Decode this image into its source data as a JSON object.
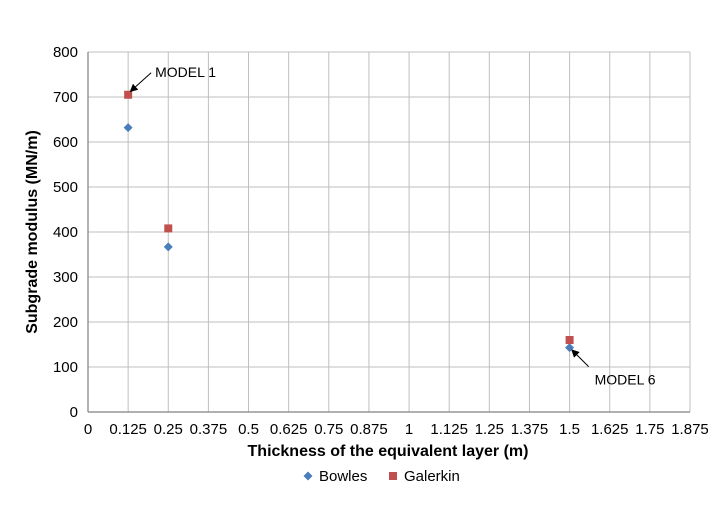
{
  "chart_data": {
    "type": "scatter",
    "title": "",
    "xlabel": "Thickness of the equivalent layer  (m)",
    "ylabel": "Subgrade modulus  (MN/m)",
    "xlim": [
      0,
      1.875
    ],
    "ylim": [
      0,
      800
    ],
    "x_ticks": [
      "0",
      "0.125",
      "0.25",
      "0.375",
      "0.5",
      "0.625",
      "0.75",
      "0.875",
      "1",
      "1.125",
      "1.25",
      "1.375",
      "1.5",
      "1.625",
      "1.75",
      "1.875"
    ],
    "y_ticks": [
      "0",
      "100",
      "200",
      "300",
      "400",
      "500",
      "600",
      "700",
      "800"
    ],
    "grid": true,
    "legend_position": "bottom",
    "series": [
      {
        "name": "Bowles",
        "marker": "diamond",
        "color": "#4a7ebb",
        "points": [
          {
            "x": 0.125,
            "y": 632
          },
          {
            "x": 0.25,
            "y": 367
          },
          {
            "x": 1.5,
            "y": 143
          }
        ]
      },
      {
        "name": "Galerkin",
        "marker": "square",
        "color": "#c0504d",
        "points": [
          {
            "x": 0.125,
            "y": 705
          },
          {
            "x": 0.25,
            "y": 408
          },
          {
            "x": 1.5,
            "y": 160
          }
        ]
      }
    ],
    "annotations": [
      {
        "text": "MODEL 1",
        "x": 0.125,
        "y": 705
      },
      {
        "text": "MODEL 6",
        "x": 1.5,
        "y": 143
      }
    ]
  }
}
